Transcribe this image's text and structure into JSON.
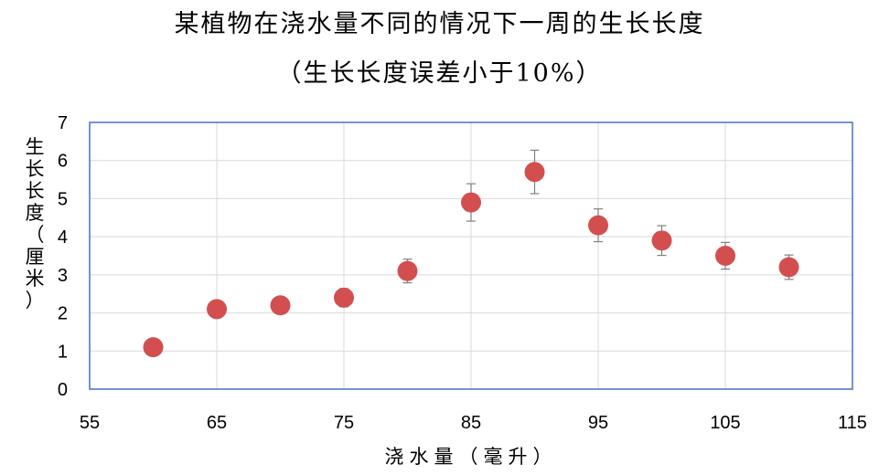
{
  "chart_data": {
    "type": "scatter",
    "title": "某植物在浇水量不同的情况下一周的生长长度",
    "subtitle": "（生长长度误差小于10%）",
    "xlabel": "浇水量（毫升）",
    "ylabel": "生长长度（厘米）",
    "xlim": [
      55,
      115
    ],
    "ylim": [
      0,
      7
    ],
    "xticks": [
      55,
      65,
      75,
      85,
      95,
      105,
      115
    ],
    "yticks": [
      0,
      1,
      2,
      3,
      4,
      5,
      6,
      7
    ],
    "grid": true,
    "marker_color": "#d34f4f",
    "x": [
      60,
      65,
      70,
      75,
      80,
      85,
      90,
      95,
      100,
      105,
      110
    ],
    "y": [
      1.1,
      2.1,
      2.2,
      2.4,
      3.1,
      4.9,
      5.7,
      4.3,
      3.9,
      3.5,
      3.2
    ],
    "error": 0.1
  }
}
